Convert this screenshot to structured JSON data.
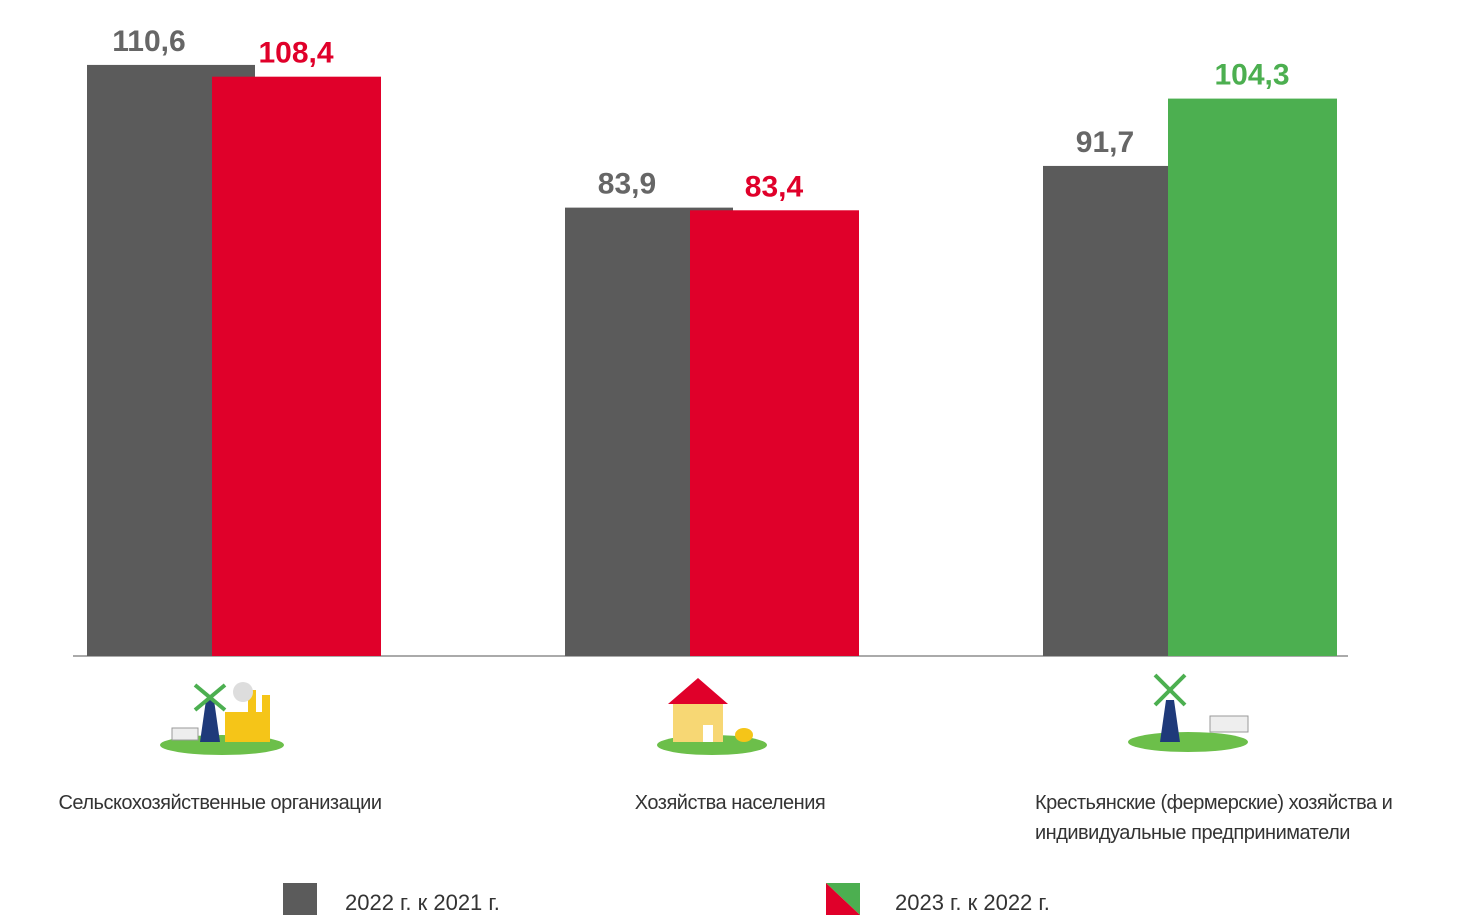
{
  "chart_data": {
    "type": "bar",
    "categories": [
      "Сельскохозяйственные организации",
      "Хозяйства населения",
      "Крестьянские (фермерские) хозяйства и индивидуальные предприниматели"
    ],
    "series": [
      {
        "name": "2022 г. к 2021 г.",
        "color": "#5b5b5b",
        "values": [
          110.6,
          83.9,
          91.7
        ],
        "value_labels": [
          "110,6",
          "83,9",
          "91,7"
        ]
      },
      {
        "name": "2023 г. к 2022 г.",
        "colors": [
          "#e0002a",
          "#e0002a",
          "#4caf50"
        ],
        "values": [
          108.4,
          83.4,
          104.3
        ],
        "value_labels": [
          "108,4",
          "83,4",
          "104,3"
        ]
      }
    ],
    "ylim": [
      0,
      122
    ]
  }
}
